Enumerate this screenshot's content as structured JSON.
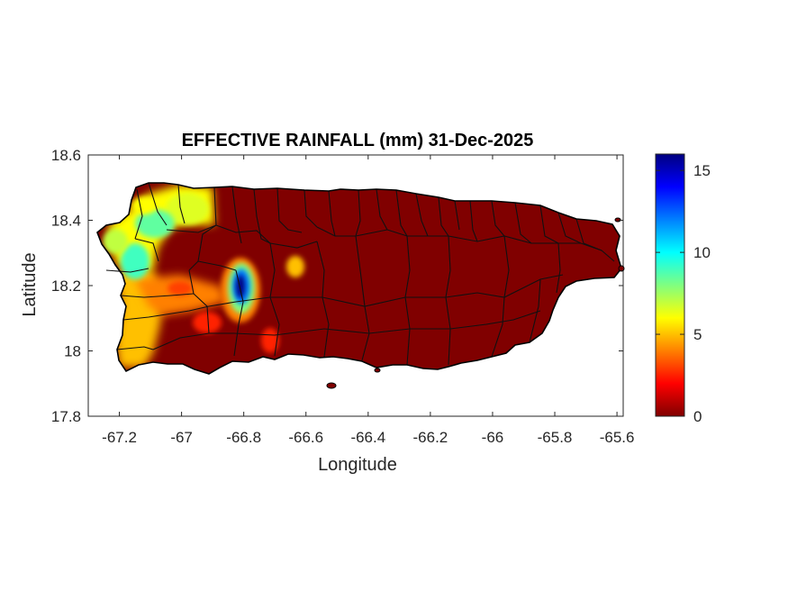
{
  "figure": {
    "title": "EFFECTIVE RAINFALL (mm) 31-Dec-2025",
    "xlabel": "Longitude",
    "ylabel": "Latitude"
  },
  "chart_data": {
    "type": "heatmap",
    "title": "EFFECTIVE RAINFALL (mm) 31-Dec-2025",
    "xlabel": "Longitude",
    "ylabel": "Latitude",
    "xlim": [
      -67.3,
      -65.58
    ],
    "ylim": [
      17.8,
      18.6
    ],
    "xticks": [
      -67.2,
      -67,
      -66.8,
      -66.6,
      -66.4,
      -66.2,
      -66,
      -65.8,
      -65.6
    ],
    "xtick_labels": [
      "-67.2",
      "-67",
      "-66.8",
      "-66.6",
      "-66.4",
      "-66.2",
      "-66",
      "-65.8",
      "-65.6"
    ],
    "yticks": [
      17.8,
      18,
      18.2,
      18.4,
      18.6
    ],
    "ytick_labels": [
      "17.8",
      "18",
      "18.2",
      "18.4",
      "18.6"
    ],
    "colorbar": {
      "colormap": "jet",
      "range": [
        0,
        16
      ],
      "ticks": [
        0,
        5,
        10,
        15
      ],
      "tick_labels": [
        "0",
        "5",
        "10",
        "15"
      ],
      "colors": [
        "#800000",
        "#ff0000",
        "#ff8000",
        "#ffff00",
        "#80ff80",
        "#00ffff",
        "#0080ff",
        "#0000ff",
        "#000080"
      ]
    },
    "background_value": 0,
    "rain_areas": [
      {
        "lon": -67.1,
        "lat": 18.45,
        "value": 7
      },
      {
        "lon": -67.0,
        "lat": 18.42,
        "value": 6
      },
      {
        "lon": -67.16,
        "lat": 18.28,
        "value": 8
      },
      {
        "lon": -67.19,
        "lat": 18.35,
        "value": 6
      },
      {
        "lon": -67.2,
        "lat": 18.0,
        "value": 5.5
      },
      {
        "lon": -67.08,
        "lat": 18.18,
        "value": 4.5
      },
      {
        "lon": -66.81,
        "lat": 18.19,
        "value": 16
      },
      {
        "lon": -66.64,
        "lat": 18.26,
        "value": 5
      }
    ]
  }
}
